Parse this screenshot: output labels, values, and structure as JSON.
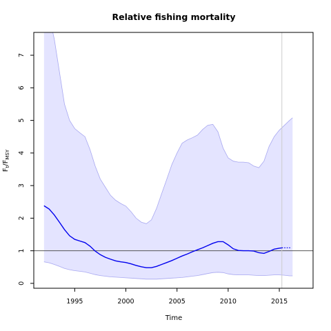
{
  "chart_data": {
    "type": "area",
    "title": "Relative fishing mortality",
    "xlabel": "Time",
    "ylabel": {
      "main": "F",
      "sub1": "t",
      "sep": "/F",
      "sub2": "MSY"
    },
    "xlim": [
      1991,
      2018.3
    ],
    "ylim": [
      -0.15,
      7.7
    ],
    "xticks": [
      1995,
      2000,
      2005,
      2010,
      2015
    ],
    "yticks": [
      0,
      1,
      2,
      3,
      4,
      5,
      6,
      7
    ],
    "reference_line_y": 1,
    "vertical_line_x": 2015.25,
    "colors": {
      "median": "#0000ee",
      "band_fill": "#e4e4ff",
      "band_edge": "#a8a8f0",
      "reference_line": "#555555",
      "vertical_line": "#cccccc"
    },
    "series": [
      {
        "role": "median",
        "x": [
          1992,
          1992.5,
          1993,
          1993.5,
          1994,
          1994.5,
          1995,
          1995.5,
          1996,
          1996.5,
          1997,
          1997.5,
          1998,
          1998.5,
          1999,
          1999.5,
          2000,
          2000.5,
          2001,
          2001.5,
          2002,
          2002.5,
          2003,
          2003.5,
          2004,
          2004.5,
          2005,
          2005.5,
          2006,
          2006.5,
          2007,
          2007.5,
          2008,
          2008.5,
          2009,
          2009.5,
          2010,
          2010.5,
          2011,
          2011.5,
          2012,
          2012.5,
          2013,
          2013.5,
          2014,
          2014.5,
          2015,
          2015.25
        ],
        "y": [
          2.38,
          2.28,
          2.1,
          1.88,
          1.65,
          1.46,
          1.35,
          1.3,
          1.25,
          1.14,
          0.99,
          0.88,
          0.8,
          0.74,
          0.69,
          0.66,
          0.64,
          0.6,
          0.55,
          0.51,
          0.48,
          0.48,
          0.52,
          0.58,
          0.64,
          0.7,
          0.77,
          0.84,
          0.9,
          0.97,
          1.03,
          1.09,
          1.16,
          1.23,
          1.28,
          1.28,
          1.18,
          1.06,
          1.01,
          1.0,
          1.0,
          0.99,
          0.94,
          0.92,
          0.98,
          1.05,
          1.08,
          1.09
        ]
      },
      {
        "role": "forecast",
        "x": [
          2015.25,
          2016.2
        ],
        "y": [
          1.09,
          1.09
        ]
      },
      {
        "role": "upper",
        "x": [
          1992,
          1992.5,
          1993,
          1993.5,
          1994,
          1994.5,
          1995,
          1995.5,
          1996,
          1996.5,
          1997,
          1997.5,
          1998,
          1998.5,
          1999,
          1999.5,
          2000,
          2000.5,
          2001,
          2001.5,
          2002,
          2002.5,
          2003,
          2003.5,
          2004,
          2004.5,
          2005,
          2005.5,
          2006,
          2006.5,
          2007,
          2007.5,
          2008,
          2008.5,
          2009,
          2009.5,
          2010,
          2010.5,
          2011,
          2011.5,
          2012,
          2012.5,
          2013,
          2013.5,
          2014,
          2014.5,
          2015,
          2015.5,
          2016,
          2016.3
        ],
        "y": [
          8.6,
          8.2,
          7.5,
          6.5,
          5.5,
          5.0,
          4.75,
          4.62,
          4.5,
          4.1,
          3.6,
          3.2,
          2.95,
          2.7,
          2.55,
          2.45,
          2.37,
          2.2,
          2.0,
          1.88,
          1.83,
          1.95,
          2.3,
          2.75,
          3.2,
          3.65,
          4.0,
          4.3,
          4.4,
          4.47,
          4.55,
          4.72,
          4.85,
          4.88,
          4.65,
          4.15,
          3.85,
          3.75,
          3.72,
          3.72,
          3.7,
          3.6,
          3.55,
          3.75,
          4.2,
          4.5,
          4.7,
          4.85,
          5.0,
          5.08
        ]
      },
      {
        "role": "lower",
        "x": [
          1992,
          1992.5,
          1993,
          1993.5,
          1994,
          1994.5,
          1995,
          1995.5,
          1996,
          1996.5,
          1997,
          1997.5,
          1998,
          1998.5,
          1999,
          1999.5,
          2000,
          2000.5,
          2001,
          2001.5,
          2002,
          2002.5,
          2003,
          2003.5,
          2004,
          2004.5,
          2005,
          2005.5,
          2006,
          2006.5,
          2007,
          2007.5,
          2008,
          2008.5,
          2009,
          2009.5,
          2010,
          2010.5,
          2011,
          2011.5,
          2012,
          2012.5,
          2013,
          2013.5,
          2014,
          2014.5,
          2015,
          2015.5,
          2016,
          2016.3
        ],
        "y": [
          0.66,
          0.63,
          0.58,
          0.52,
          0.46,
          0.42,
          0.39,
          0.37,
          0.35,
          0.31,
          0.27,
          0.24,
          0.22,
          0.2,
          0.19,
          0.18,
          0.17,
          0.16,
          0.15,
          0.14,
          0.13,
          0.13,
          0.13,
          0.14,
          0.15,
          0.16,
          0.17,
          0.18,
          0.2,
          0.22,
          0.24,
          0.27,
          0.3,
          0.33,
          0.34,
          0.33,
          0.29,
          0.27,
          0.26,
          0.26,
          0.26,
          0.25,
          0.24,
          0.24,
          0.25,
          0.26,
          0.26,
          0.25,
          0.23,
          0.23
        ]
      }
    ]
  }
}
